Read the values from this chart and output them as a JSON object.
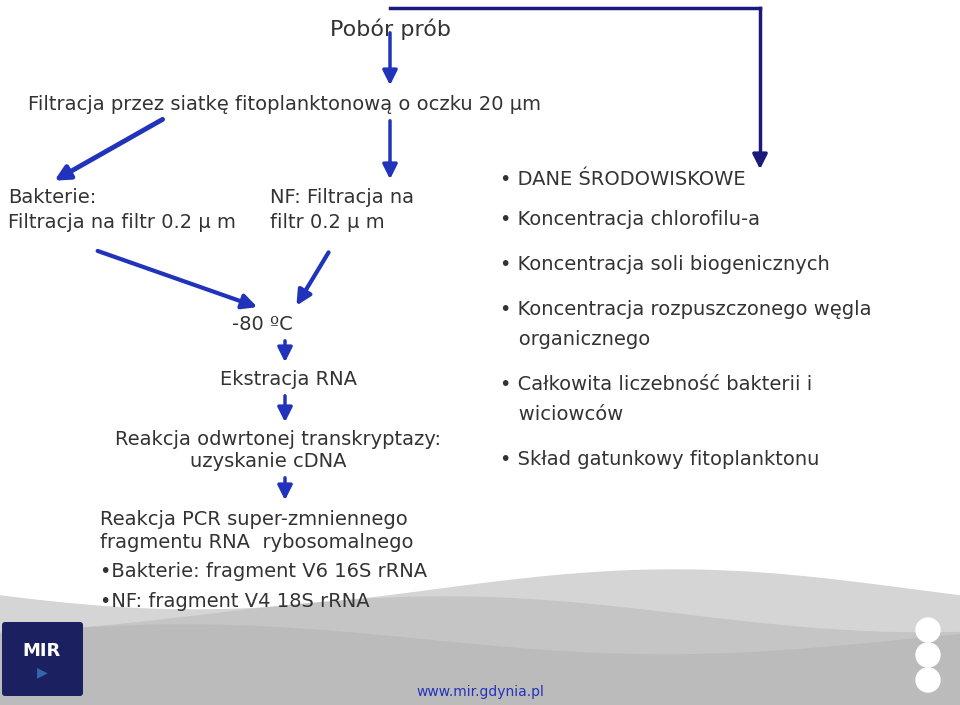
{
  "title": "Pobór prób",
  "arrow_blue": "#2233bb",
  "arrow_dark": "#1a1a7a",
  "text_color": "#333333",
  "font_size_main": 14,
  "font_size_title": 16,
  "url_text": "www.mir.gdynia.pl",
  "filter_label": "Filtracja przez siatkę fitoplanktonową o oczku 20 μm",
  "bakt_label": "Bakterie:\nFiltracja na filtr 0.2 μ m",
  "nf_label": "NF: Filtracja na\nfiltr 0.2 μ m",
  "temp_label": "-80 ºC",
  "ekstrakcja_label": "Ekstracja RNA",
  "reakcja1_line1": "Reakcja odwrtonej transkryptazy:",
  "reakcja1_line2": "uzyskanie cDNA",
  "reakcja2_line1": "Reakcja PCR super-zmniennego",
  "reakcja2_line2": "fragmentu RNA  rybosomalnego",
  "bullet1": "•Bakterie: fragment V6 16S rRNA",
  "bullet2": "•NF: fragment V4 18S rRNA",
  "right_items": [
    "• DANE ŚRODOWISKOWE",
    "• Koncentracja chlorofilu-a",
    "• Koncentracja soli biogenicznych",
    "• Koncentracja rozpuszczonego węgla",
    "   organicznego",
    "• Całkowita liczebność bakterii i",
    "   wiciowców",
    "• Skład gatunkowy fitoplanktonu"
  ],
  "right_y_positions": [
    170,
    210,
    255,
    300,
    330,
    375,
    405,
    450
  ]
}
